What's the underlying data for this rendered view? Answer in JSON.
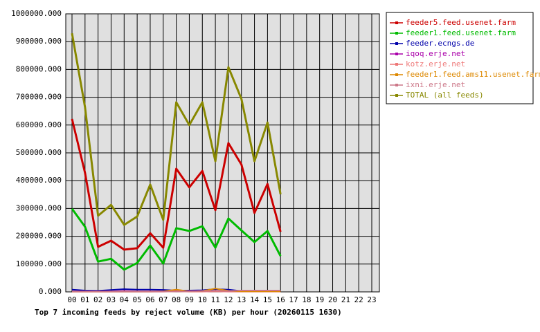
{
  "chart_data": {
    "type": "line",
    "title": "Top 7 incoming feeds by reject volume (KB) per hour (20260115 1630)",
    "categories": [
      "00",
      "01",
      "02",
      "03",
      "04",
      "05",
      "06",
      "07",
      "08",
      "09",
      "10",
      "11",
      "12",
      "13",
      "14",
      "15",
      "16",
      "17",
      "18",
      "19",
      "20",
      "21",
      "22",
      "23"
    ],
    "ylim": [
      0,
      1000000
    ],
    "yticks": [
      {
        "value": 0,
        "label": "0.000"
      },
      {
        "value": 100000,
        "label": "100000.000"
      },
      {
        "value": 200000,
        "label": "200000.000"
      },
      {
        "value": 300000,
        "label": "300000.000"
      },
      {
        "value": 400000,
        "label": "400000.000"
      },
      {
        "value": 500000,
        "label": "500000.000"
      },
      {
        "value": 600000,
        "label": "600000.000"
      },
      {
        "value": 700000,
        "label": "700000.000"
      },
      {
        "value": 800000,
        "label": "800000.000"
      },
      {
        "value": 900000,
        "label": "900000.000"
      },
      {
        "value": 1000000,
        "label": "1000000.000"
      }
    ],
    "grid": true,
    "legend": "right",
    "series": [
      {
        "name": "feeder5.feed.usenet.farm",
        "color": "#cc0000",
        "values": [
          622000,
          428000,
          162000,
          184000,
          152000,
          157000,
          211000,
          159000,
          443000,
          376000,
          435000,
          294000,
          535000,
          458000,
          284000,
          388000,
          216000,
          null,
          null,
          null,
          null,
          null,
          null,
          null
        ]
      },
      {
        "name": "feeder1.feed.usenet.farm",
        "color": "#00bb00",
        "values": [
          299000,
          234000,
          109000,
          119000,
          80000,
          104000,
          167000,
          102000,
          229000,
          219000,
          236000,
          159000,
          264000,
          221000,
          179000,
          219000,
          129000,
          null,
          null,
          null,
          null,
          null,
          null,
          null
        ]
      },
      {
        "name": "feeder.ecngs.de",
        "color": "#0000aa",
        "values": [
          8000,
          5000,
          4000,
          7000,
          10000,
          8000,
          8000,
          7000,
          5000,
          5000,
          6000,
          10000,
          8000,
          3000,
          3000,
          3000,
          3000,
          null,
          null,
          null,
          null,
          null,
          null,
          null
        ]
      },
      {
        "name": "iqoq.erje.net",
        "color": "#aa00aa",
        "values": [
          2000,
          2000,
          2000,
          2000,
          3000,
          2000,
          2000,
          2000,
          3000,
          3000,
          3000,
          4000,
          3000,
          3000,
          3000,
          3000,
          3000,
          null,
          null,
          null,
          null,
          null,
          null,
          null
        ]
      },
      {
        "name": "kotz.erje.net",
        "color": "#ee7777",
        "values": [
          1000,
          1000,
          1000,
          1000,
          1000,
          1000,
          1000,
          1000,
          2000,
          1000,
          1000,
          2000,
          1000,
          1000,
          1000,
          1000,
          1000,
          null,
          null,
          null,
          null,
          null,
          null,
          null
        ]
      },
      {
        "name": "feeder1.feed.ams11.usenet.farm",
        "color": "#dd8800",
        "values": [
          1000,
          1000,
          1000,
          1000,
          1000,
          1000,
          1000,
          2000,
          8000,
          2000,
          3000,
          12000,
          4000,
          2000,
          2000,
          2000,
          2000,
          null,
          null,
          null,
          null,
          null,
          null,
          null
        ]
      },
      {
        "name": "ixni.erje.net",
        "color": "#cc7788",
        "values": [
          1000,
          1000,
          1000,
          1000,
          1000,
          1000,
          1000,
          1000,
          2000,
          2000,
          3000,
          4000,
          3000,
          5000,
          5000,
          5000,
          5000,
          null,
          null,
          null,
          null,
          null,
          null,
          null
        ]
      },
      {
        "name": "TOTAL (all feeds)",
        "color": "#888800",
        "values": [
          930000,
          664000,
          274000,
          313000,
          241000,
          271000,
          386000,
          259000,
          682000,
          600000,
          682000,
          470000,
          808000,
          694000,
          470000,
          609000,
          351000,
          null,
          null,
          null,
          null,
          null,
          null,
          null
        ]
      }
    ]
  }
}
